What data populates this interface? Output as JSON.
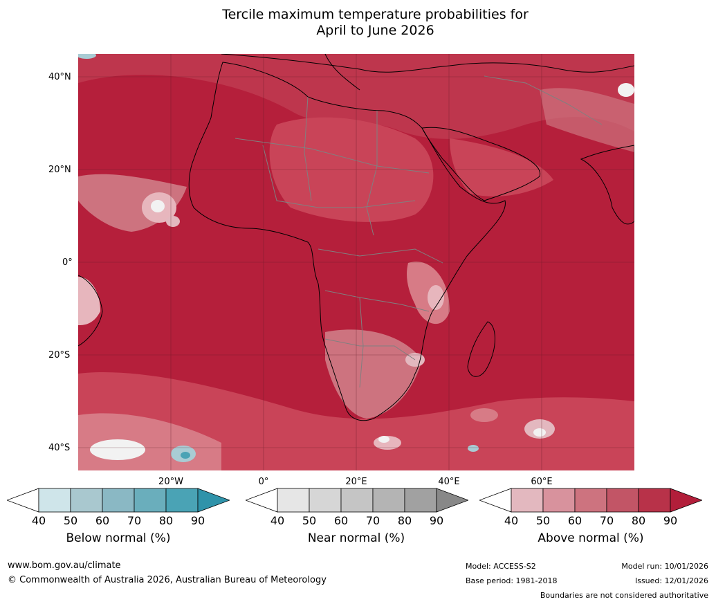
{
  "title": {
    "line1": "Tercile maximum temperature probabilities for",
    "line2": "April to June 2026"
  },
  "map": {
    "lat_labels": [
      "40°N",
      "20°N",
      "0°",
      "20°S",
      "40°S"
    ],
    "lon_labels": [
      "20°W",
      "0°",
      "20°E",
      "40°E",
      "60°E"
    ],
    "colors": {
      "ocean_dark": "#b51f3b",
      "mid": "#c94458",
      "light": "#d77b86",
      "pale": "#e7b6bd",
      "white": "#f2f2f2",
      "blue": "#4aa3b5",
      "lightblue": "#a9ccd4",
      "coast": "#000000",
      "border": "#808080"
    }
  },
  "colorbars": [
    {
      "label": "Below normal (%)",
      "ticks": [
        "40",
        "50",
        "60",
        "70",
        "80",
        "90"
      ],
      "colors": [
        "#ffffff",
        "#cfe5ea",
        "#a9c8cf",
        "#8ab8c4",
        "#6aaebc",
        "#4aa3b5",
        "#2f93aa"
      ]
    },
    {
      "label": "Near normal (%)",
      "ticks": [
        "40",
        "50",
        "60",
        "70",
        "80",
        "90"
      ],
      "colors": [
        "#ffffff",
        "#e6e6e6",
        "#d6d6d6",
        "#c5c5c5",
        "#b4b4b4",
        "#a1a1a1",
        "#888888"
      ]
    },
    {
      "label": "Above normal (%)",
      "ticks": [
        "40",
        "50",
        "60",
        "70",
        "80",
        "90"
      ],
      "colors": [
        "#ffffff",
        "#e3b8bf",
        "#d8929d",
        "#cd737f",
        "#c25566",
        "#b83249",
        "#b21e3a"
      ]
    }
  ],
  "footer": {
    "url": "www.bom.gov.au/climate",
    "copyright": "© Commonwealth of Australia 2026, Australian Bureau of Meteorology",
    "model": "Model: ACCESS-S2",
    "base_period": "Base period: 1981-2018",
    "model_run": "Model run: 10/01/2026",
    "issued": "Issued: 12/01/2026",
    "disclaimer": "Boundaries are not considered authoritative"
  }
}
